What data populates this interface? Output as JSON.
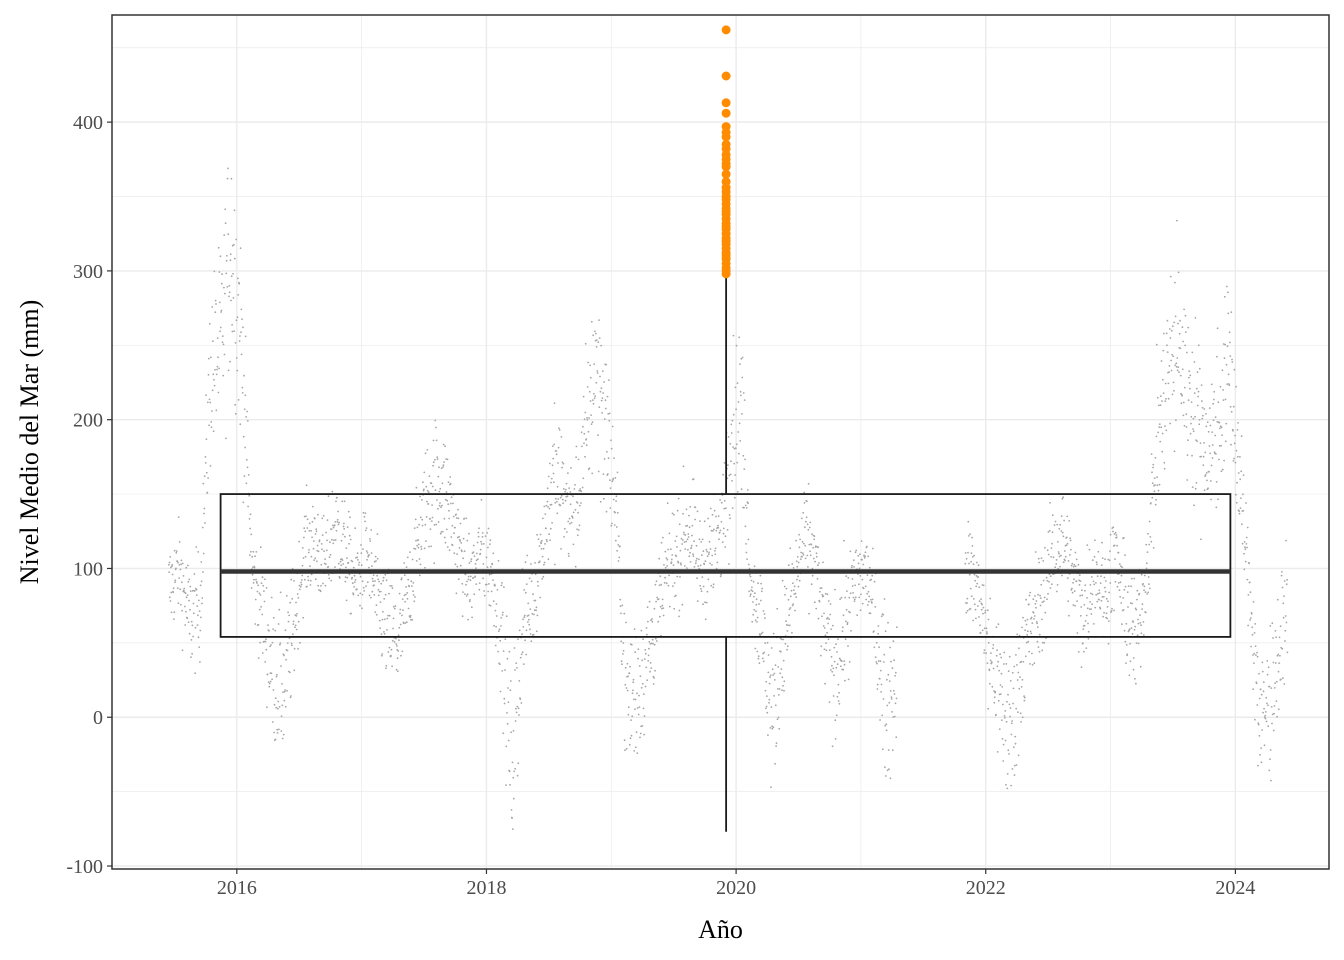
{
  "chart_data": {
    "type": "scatter",
    "title": "",
    "xlabel": "Año",
    "ylabel": "Nivel Medio del Mar (mm)",
    "xlim": [
      2015.0,
      2024.75
    ],
    "ylim": [
      -102,
      472
    ],
    "x_ticks": [
      2016,
      2018,
      2020,
      2022,
      2024
    ],
    "x_tick_labels": [
      "2016",
      "2018",
      "2020",
      "2022",
      "2024"
    ],
    "y_ticks": [
      -100,
      0,
      100,
      200,
      300,
      400
    ],
    "y_tick_labels": [
      "-100",
      "0",
      "100",
      "200",
      "300",
      "400"
    ],
    "grid": true,
    "colors": {
      "points": "#a6a6a6",
      "outliers": "#ff8c00",
      "box": "#333333",
      "median": "#333333",
      "grid": "#ebebeb",
      "panel_border": "#333333"
    },
    "boxplot": {
      "x_position": 2019.92,
      "x_extent": [
        2015.87,
        2023.96
      ],
      "q1": 54,
      "median": 98,
      "q3": 150,
      "whisker_low": -77,
      "whisker_high": 298,
      "outliers": [
        298,
        300,
        302,
        305,
        308,
        310,
        312,
        315,
        318,
        320,
        322,
        325,
        328,
        330,
        332,
        335,
        338,
        340,
        342,
        345,
        348,
        350,
        353,
        356,
        360,
        365,
        370,
        372,
        375,
        378,
        382,
        385,
        390,
        393,
        397,
        406,
        413,
        431,
        462
      ]
    },
    "daily_points": {
      "date_range": [
        "2015-06-15",
        "2024-06-01"
      ],
      "monthly_centers": [
        {
          "date": "2015-06",
          "value": 85
        },
        {
          "date": "2015-07",
          "value": 100
        },
        {
          "date": "2015-08",
          "value": 65
        },
        {
          "date": "2015-09",
          "value": 75
        },
        {
          "date": "2015-10",
          "value": 230
        },
        {
          "date": "2015-11",
          "value": 250
        },
        {
          "date": "2015-12",
          "value": 320
        },
        {
          "date": "2016-01",
          "value": 250
        },
        {
          "date": "2016-02",
          "value": 100
        },
        {
          "date": "2016-03",
          "value": 70
        },
        {
          "date": "2016-04",
          "value": 30
        },
        {
          "date": "2016-05",
          "value": 20
        },
        {
          "date": "2016-06",
          "value": 60
        },
        {
          "date": "2016-07",
          "value": 110
        },
        {
          "date": "2016-08",
          "value": 120
        },
        {
          "date": "2016-09",
          "value": 100
        },
        {
          "date": "2016-10",
          "value": 130
        },
        {
          "date": "2016-11",
          "value": 110
        },
        {
          "date": "2016-12",
          "value": 90
        },
        {
          "date": "2017-01",
          "value": 110
        },
        {
          "date": "2017-02",
          "value": 80
        },
        {
          "date": "2017-03",
          "value": 60
        },
        {
          "date": "2017-04",
          "value": 50
        },
        {
          "date": "2017-05",
          "value": 80
        },
        {
          "date": "2017-06",
          "value": 120
        },
        {
          "date": "2017-07",
          "value": 150
        },
        {
          "date": "2017-08",
          "value": 160
        },
        {
          "date": "2017-09",
          "value": 140
        },
        {
          "date": "2017-10",
          "value": 110
        },
        {
          "date": "2017-11",
          "value": 90
        },
        {
          "date": "2017-12",
          "value": 110
        },
        {
          "date": "2018-01",
          "value": 100
        },
        {
          "date": "2018-02",
          "value": 60
        },
        {
          "date": "2018-03",
          "value": -40
        },
        {
          "date": "2018-04",
          "value": 60
        },
        {
          "date": "2018-05",
          "value": 80
        },
        {
          "date": "2018-06",
          "value": 120
        },
        {
          "date": "2018-07",
          "value": 160
        },
        {
          "date": "2018-08",
          "value": 150
        },
        {
          "date": "2018-09",
          "value": 130
        },
        {
          "date": "2018-10",
          "value": 180
        },
        {
          "date": "2018-11",
          "value": 240
        },
        {
          "date": "2018-12",
          "value": 200
        },
        {
          "date": "2019-01",
          "value": 140
        },
        {
          "date": "2019-02",
          "value": 10
        },
        {
          "date": "2019-03",
          "value": 20
        },
        {
          "date": "2019-04",
          "value": 40
        },
        {
          "date": "2019-05",
          "value": 70
        },
        {
          "date": "2019-06",
          "value": 100
        },
        {
          "date": "2019-07",
          "value": 110
        },
        {
          "date": "2019-08",
          "value": 130
        },
        {
          "date": "2019-09",
          "value": 100
        },
        {
          "date": "2019-10",
          "value": 110
        },
        {
          "date": "2019-11",
          "value": 120
        },
        {
          "date": "2019-12",
          "value": 190
        },
        {
          "date": "2020-01",
          "value": 210
        },
        {
          "date": "2020-02",
          "value": 90
        },
        {
          "date": "2020-03",
          "value": 60
        },
        {
          "date": "2020-04",
          "value": 0
        },
        {
          "date": "2020-05",
          "value": 50
        },
        {
          "date": "2020-06",
          "value": 80
        },
        {
          "date": "2020-07",
          "value": 120
        },
        {
          "date": "2020-08",
          "value": 110
        },
        {
          "date": "2020-09",
          "value": 60
        },
        {
          "date": "2020-10",
          "value": 30
        },
        {
          "date": "2020-11",
          "value": 60
        },
        {
          "date": "2020-12",
          "value": 90
        },
        {
          "date": "2021-01",
          "value": 100
        },
        {
          "date": "2021-02",
          "value": 60
        },
        {
          "date": "2021-03",
          "value": 10
        },
        {
          "date": "2021-04",
          "value": 30
        },
        {
          "date": "2021-11",
          "value": 100
        },
        {
          "date": "2021-12",
          "value": 80
        },
        {
          "date": "2022-01",
          "value": 40
        },
        {
          "date": "2022-02",
          "value": 10
        },
        {
          "date": "2022-03",
          "value": -10
        },
        {
          "date": "2022-04",
          "value": 40
        },
        {
          "date": "2022-05",
          "value": 60
        },
        {
          "date": "2022-06",
          "value": 80
        },
        {
          "date": "2022-07",
          "value": 110
        },
        {
          "date": "2022-08",
          "value": 120
        },
        {
          "date": "2022-09",
          "value": 90
        },
        {
          "date": "2022-10",
          "value": 70
        },
        {
          "date": "2022-11",
          "value": 100
        },
        {
          "date": "2022-12",
          "value": 80
        },
        {
          "date": "2023-01",
          "value": 110
        },
        {
          "date": "2023-02",
          "value": 70
        },
        {
          "date": "2023-03",
          "value": 50
        },
        {
          "date": "2023-04",
          "value": 100
        },
        {
          "date": "2023-05",
          "value": 180
        },
        {
          "date": "2023-06",
          "value": 230
        },
        {
          "date": "2023-07",
          "value": 250
        },
        {
          "date": "2023-08",
          "value": 220
        },
        {
          "date": "2023-09",
          "value": 200
        },
        {
          "date": "2023-10",
          "value": 180
        },
        {
          "date": "2023-11",
          "value": 200
        },
        {
          "date": "2023-12",
          "value": 240
        },
        {
          "date": "2024-01",
          "value": 150
        },
        {
          "date": "2024-02",
          "value": 80
        },
        {
          "date": "2024-03",
          "value": -10
        },
        {
          "date": "2024-04",
          "value": 20
        },
        {
          "date": "2024-05",
          "value": 50
        },
        {
          "date": "2024-06",
          "value": 120
        }
      ],
      "gaps": [
        [
          "2021-04-15",
          "2021-11-01"
        ]
      ]
    }
  }
}
